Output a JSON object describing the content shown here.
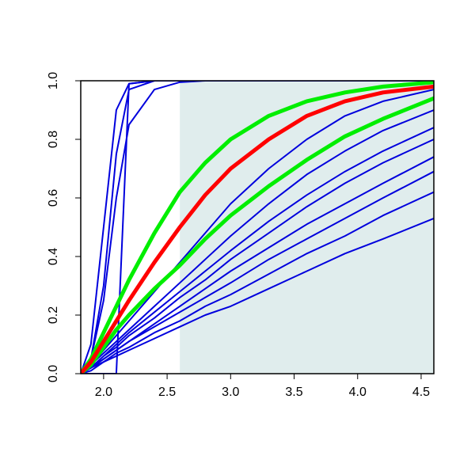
{
  "chart_data": {
    "type": "line",
    "x": [
      1.82,
      1.9,
      2.0,
      2.1,
      2.2,
      2.4,
      2.6,
      2.8,
      3.0,
      3.3,
      3.6,
      3.9,
      4.2,
      4.6
    ],
    "xlim": [
      1.82,
      4.6
    ],
    "ylim": [
      0,
      1
    ],
    "xticks": [
      {
        "value": 2,
        "label": "2.0"
      },
      2.5,
      {
        "value": 3,
        "label": "3.0"
      },
      3.5,
      {
        "value": 4,
        "label": "4.0"
      },
      4.5
    ],
    "yticks": [
      {
        "value": 0,
        "label": "0.0"
      },
      0.2,
      0.4,
      0.6,
      0.8,
      {
        "value": 1,
        "label": "1.0"
      }
    ],
    "shaded_xrange": [
      2.6,
      4.6
    ],
    "shade_color": "#e0eded",
    "series": [
      {
        "color": "#0000dd",
        "values": [
          0,
          0.1,
          0.5,
          0.9,
          0.99,
          1,
          1,
          1,
          1,
          1,
          1,
          1,
          1,
          1
        ]
      },
      {
        "color": "#0000dd",
        "values": [
          0,
          0.05,
          0.3,
          0.75,
          0.97,
          1,
          1,
          1,
          1,
          1,
          1,
          1,
          1,
          1
        ]
      },
      {
        "color": "#0000dd",
        "values": [
          0,
          0,
          0,
          0,
          0.99,
          1,
          1,
          1,
          1,
          1,
          1,
          1,
          1,
          1
        ]
      },
      {
        "color": "#0000dd",
        "values": [
          0,
          0.05,
          0.25,
          0.6,
          0.85,
          0.97,
          0.995,
          1,
          1,
          1,
          1,
          1,
          1,
          1
        ]
      },
      {
        "color": "#0000dd",
        "values": [
          0,
          0.03,
          0.08,
          0.13,
          0.18,
          0.28,
          0.38,
          0.48,
          0.58,
          0.7,
          0.8,
          0.88,
          0.93,
          0.97
        ]
      },
      {
        "color": "#0000dd",
        "values": [
          0,
          0.03,
          0.07,
          0.11,
          0.15,
          0.23,
          0.31,
          0.39,
          0.47,
          0.58,
          0.68,
          0.76,
          0.83,
          0.9
        ]
      },
      {
        "color": "#0000dd",
        "values": [
          0,
          0.02,
          0.06,
          0.1,
          0.14,
          0.21,
          0.28,
          0.35,
          0.42,
          0.52,
          0.61,
          0.69,
          0.76,
          0.84
        ]
      },
      {
        "color": "#0000dd",
        "values": [
          0,
          0.02,
          0.06,
          0.09,
          0.13,
          0.19,
          0.26,
          0.32,
          0.39,
          0.48,
          0.57,
          0.65,
          0.72,
          0.8
        ]
      },
      {
        "color": "#0000dd",
        "values": [
          0,
          0.02,
          0.05,
          0.08,
          0.11,
          0.17,
          0.23,
          0.29,
          0.35,
          0.43,
          0.51,
          0.58,
          0.65,
          0.74
        ]
      },
      {
        "color": "#0000dd",
        "values": [
          0,
          0.02,
          0.05,
          0.08,
          0.11,
          0.16,
          0.21,
          0.26,
          0.31,
          0.39,
          0.46,
          0.53,
          0.6,
          0.69
        ]
      },
      {
        "color": "#0000dd",
        "values": [
          0,
          0.02,
          0.04,
          0.07,
          0.09,
          0.14,
          0.18,
          0.23,
          0.27,
          0.34,
          0.41,
          0.47,
          0.54,
          0.62
        ]
      },
      {
        "color": "#0000dd",
        "values": [
          0,
          0.01,
          0.04,
          0.06,
          0.08,
          0.12,
          0.16,
          0.2,
          0.23,
          0.29,
          0.35,
          0.41,
          0.46,
          0.53
        ]
      },
      {
        "color": "#00ee00",
        "values": [
          0,
          0.05,
          0.14,
          0.23,
          0.32,
          0.48,
          0.62,
          0.72,
          0.8,
          0.88,
          0.93,
          0.96,
          0.98,
          0.995
        ]
      },
      {
        "color": "#00ee00",
        "values": [
          0,
          0.03,
          0.09,
          0.15,
          0.2,
          0.29,
          0.37,
          0.46,
          0.54,
          0.64,
          0.73,
          0.81,
          0.87,
          0.94
        ]
      },
      {
        "color": "#ff0000",
        "values": [
          0,
          0.04,
          0.11,
          0.18,
          0.25,
          0.38,
          0.5,
          0.61,
          0.7,
          0.8,
          0.88,
          0.93,
          0.96,
          0.98
        ]
      }
    ]
  }
}
